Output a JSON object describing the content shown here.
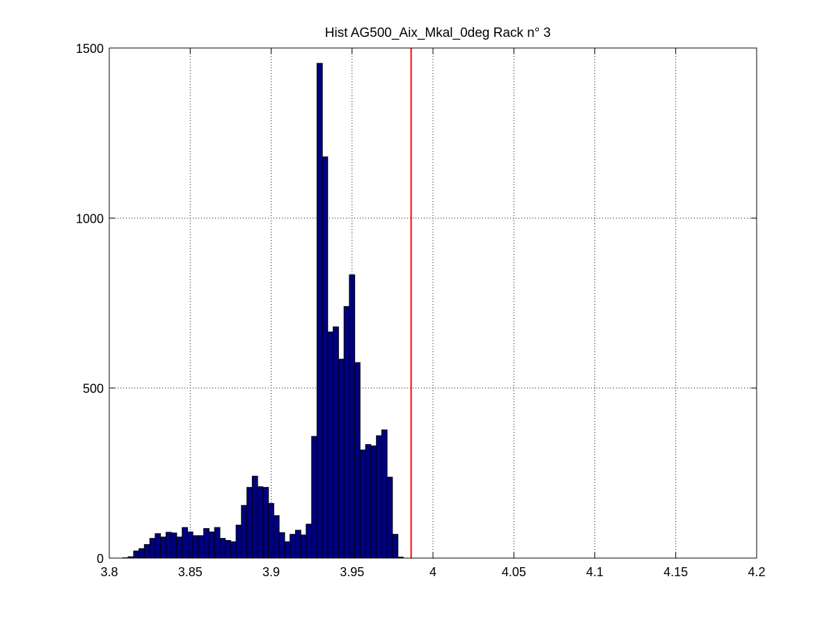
{
  "chart_data": {
    "type": "bar",
    "title": "Hist AG500_Aix_Mkal_0deg Rack n° 3",
    "xlabel": "",
    "ylabel": "",
    "xlim": [
      3.8,
      4.2
    ],
    "ylim": [
      0,
      1500
    ],
    "grid": true,
    "bar_color": "#00007f",
    "bar_edge_color": "#000000",
    "reference_line": {
      "x": 3.9865,
      "color": "#ff0000"
    },
    "bin_width": 0.003333,
    "xticks": [
      "3.8",
      "3.85",
      "3.9",
      "3.95",
      "4",
      "4.05",
      "4.1",
      "4.15",
      "4.2"
    ],
    "yticks": [
      "0",
      "500",
      "1000",
      "1500"
    ],
    "bin_centers": [
      3.8067,
      3.81,
      3.8133,
      3.8167,
      3.82,
      3.8233,
      3.8267,
      3.83,
      3.8333,
      3.8367,
      3.84,
      3.8433,
      3.8467,
      3.85,
      3.8533,
      3.8567,
      3.86,
      3.8633,
      3.8667,
      3.87,
      3.8733,
      3.8767,
      3.88,
      3.8833,
      3.8867,
      3.89,
      3.8933,
      3.8967,
      3.9,
      3.9033,
      3.9067,
      3.91,
      3.9133,
      3.9167,
      3.92,
      3.9233,
      3.9267,
      3.93,
      3.9333,
      3.9367,
      3.94,
      3.9433,
      3.9467,
      3.95,
      3.9533,
      3.9567,
      3.96,
      3.9633,
      3.9667,
      3.97,
      3.9733,
      3.9767,
      3.98,
      3.9833,
      3.9867,
      3.99,
      3.9933,
      3.9967,
      4.0,
      4.0033,
      4.0067,
      4.01,
      4.0133,
      4.0167,
      4.02,
      4.0233,
      4.0267,
      4.03,
      4.0333,
      4.0367,
      4.04,
      4.0433,
      4.0467,
      4.05,
      4.0533,
      4.0567,
      4.06
    ],
    "values": [
      0,
      1,
      4,
      21,
      28,
      40,
      58,
      72,
      62,
      76,
      74,
      62,
      90,
      77,
      66,
      66,
      87,
      77,
      90,
      58,
      52,
      48,
      97,
      155,
      208,
      241,
      210,
      208,
      161,
      125,
      75,
      48,
      70,
      82,
      68,
      100,
      358,
      1455,
      1180,
      665,
      680,
      585,
      740,
      833,
      575,
      318,
      334,
      330,
      360,
      377,
      238,
      70,
      3,
      0,
      0,
      0,
      0,
      0,
      0,
      0,
      0,
      0,
      0,
      0,
      0,
      0,
      0,
      0,
      0,
      0,
      0,
      0,
      0,
      0,
      0,
      0,
      0
    ]
  }
}
